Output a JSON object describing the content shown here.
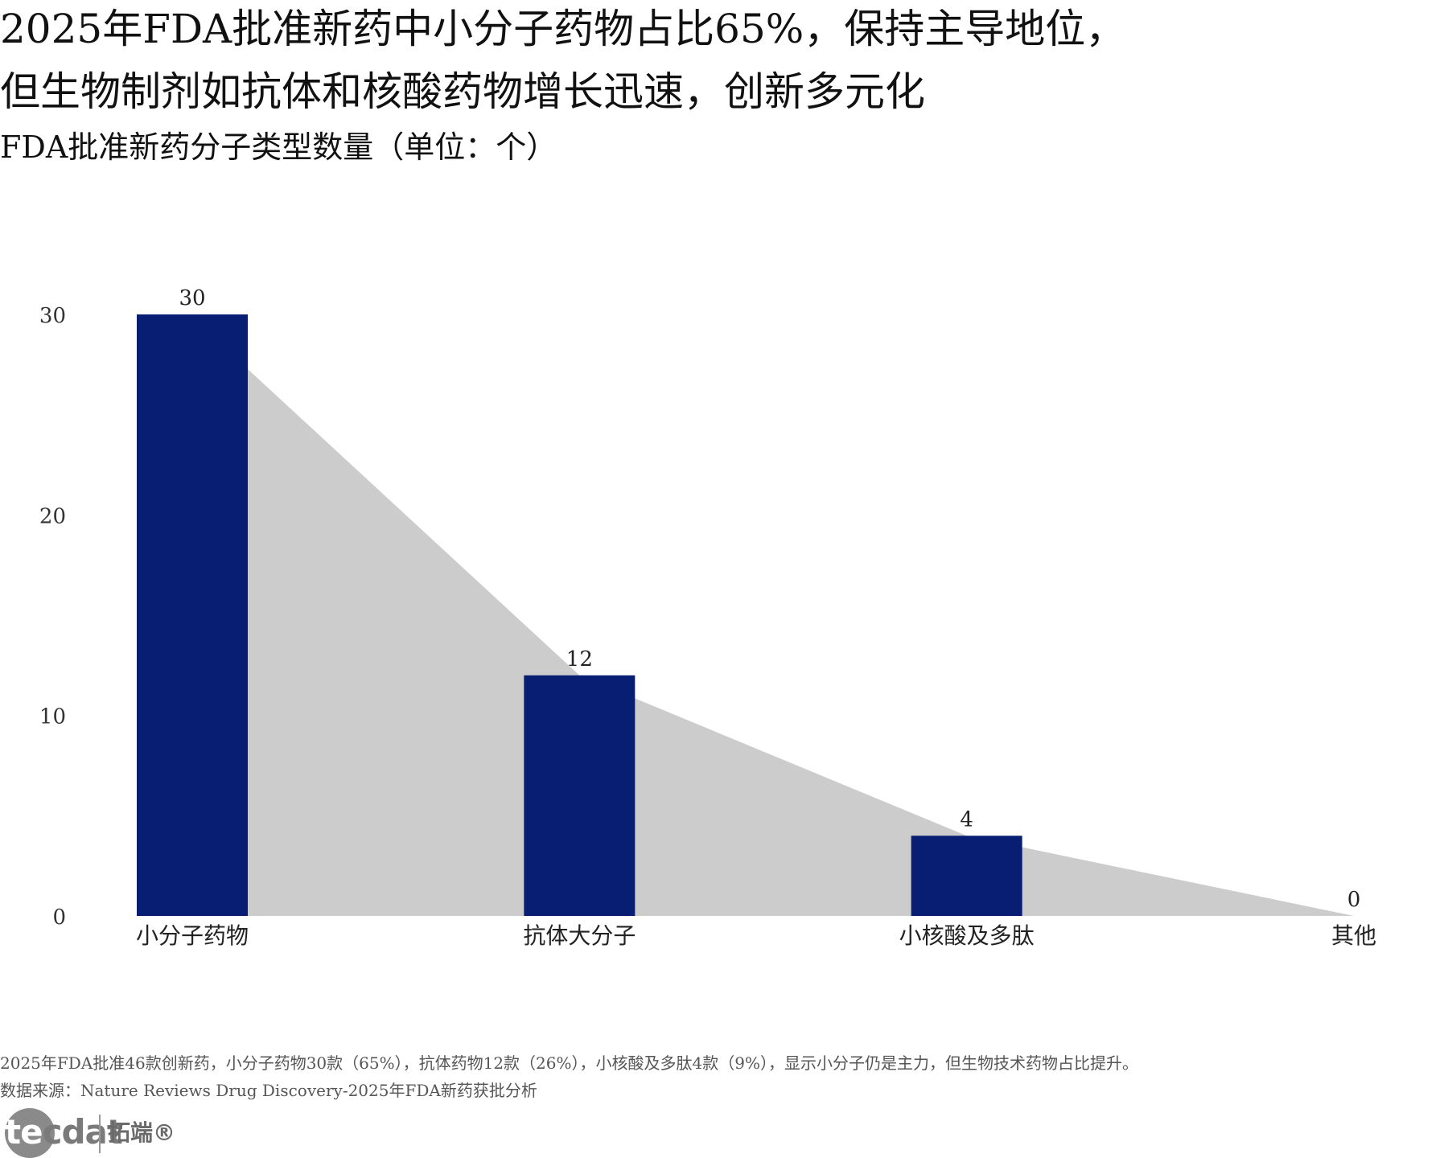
{
  "header": {
    "title_line1": "2025年FDA批准新药中小分子药物占比65%，保持主导地位，",
    "title_line2": "但生物制剂如抗体和核酸药物增长迅速，创新多元化",
    "subtitle": "FDA批准新药分子类型数量（单位：个）"
  },
  "chart_data": {
    "type": "bar",
    "categories": [
      "小分子药物",
      "抗体大分子",
      "小核酸及多肽",
      "其他"
    ],
    "values": [
      30,
      12,
      4,
      0
    ],
    "data_labels": [
      "30",
      "12",
      "4",
      "0"
    ],
    "ylim": [
      0,
      30
    ],
    "yticks": [
      "0",
      "10",
      "20",
      "30"
    ],
    "title": "",
    "xlabel": "",
    "ylabel": "",
    "grid": false,
    "legend": "none",
    "bar_color": "#071E73",
    "area_color": "#CCCCCC",
    "area_trend": true
  },
  "footer": {
    "note": "2025年FDA批准46款创新药，小分子药物30款（65%），抗体药物12款（26%），小核酸及多肽4款（9%），显示小分子仍是主力，但生物技术药物占比提升。",
    "source": "数据来源：Nature Reviews Drug Discovery-2025年FDA新药获批分析"
  },
  "logo": {
    "brand_first": "te",
    "brand_rest": "cdat",
    "brand_cn": "拓端®"
  }
}
